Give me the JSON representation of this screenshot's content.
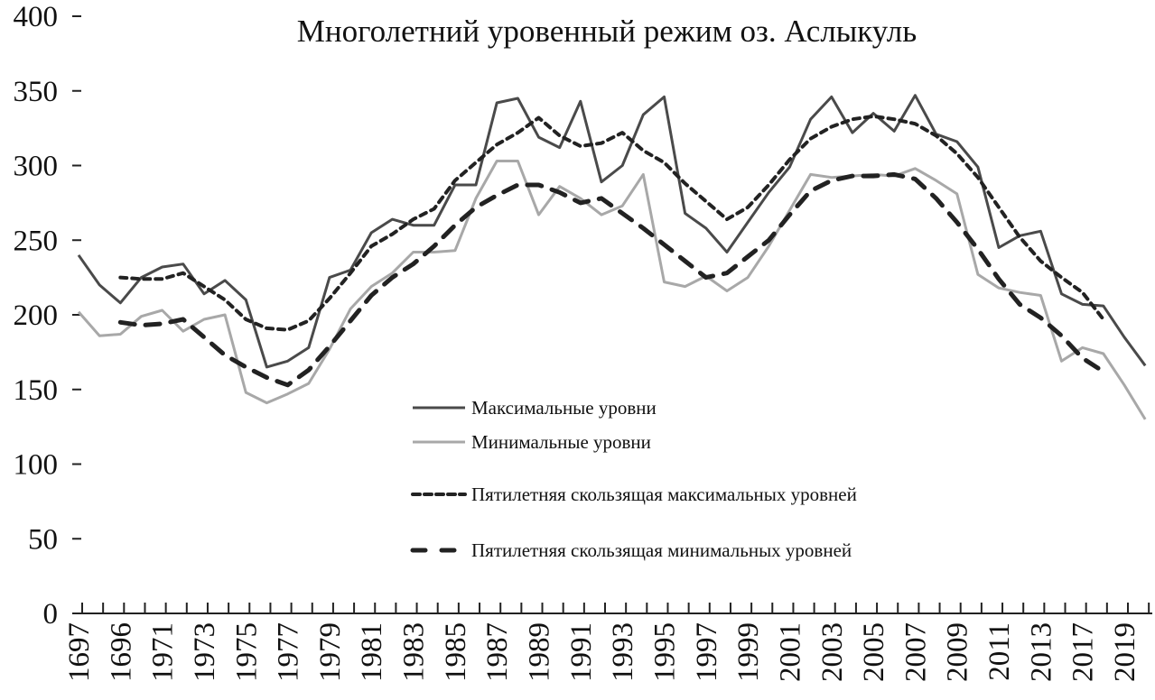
{
  "chart_data": {
    "type": "line",
    "title": "Многолетний уровенный режим оз. Аслыкуль",
    "xlabel": "",
    "ylabel": "",
    "ylim": [
      0,
      400
    ],
    "yticks": [
      "0",
      "50",
      "100",
      "150",
      "200",
      "250",
      "300",
      "350",
      "400"
    ],
    "xtick_labels": [
      "1697",
      "1696",
      "1971",
      "1973",
      "1975",
      "1977",
      "1979",
      "1981",
      "1983",
      "1985",
      "1987",
      "1989",
      "1991",
      "1993",
      "1995",
      "1997",
      "1999",
      "2001",
      "2003",
      "2005",
      "2007",
      "2009",
      "2011",
      "2013",
      "2017",
      "2019"
    ],
    "n_points": 52,
    "grid": false,
    "legend_placement": "center",
    "series": [
      {
        "name": "Максимальные уровни",
        "style": "solid",
        "color": "#4a4a4a",
        "values": [
          240,
          220,
          208,
          225,
          232,
          234,
          214,
          223,
          210,
          165,
          169,
          178,
          225,
          230,
          255,
          264,
          260,
          260,
          287,
          287,
          342,
          345,
          319,
          312,
          343,
          289,
          300,
          334,
          346,
          268,
          258,
          242,
          262,
          282,
          299,
          331,
          346,
          322,
          335,
          323,
          347,
          321,
          316,
          299,
          245,
          253,
          256,
          214,
          207,
          206,
          185,
          166
        ]
      },
      {
        "name": "Минимальные уровни",
        "style": "solid",
        "color": "#a8a8a8",
        "values": [
          202,
          186,
          187,
          199,
          203,
          189,
          197,
          200,
          148,
          141,
          147,
          154,
          177,
          204,
          219,
          228,
          242,
          242,
          243,
          278,
          303,
          303,
          267,
          286,
          278,
          267,
          273,
          294,
          222,
          219,
          226,
          216,
          225,
          246,
          270,
          294,
          292,
          293,
          294,
          293,
          298,
          290,
          281,
          227,
          218,
          215,
          213,
          169,
          178,
          174,
          153,
          130
        ]
      },
      {
        "name": "Пятилетняя скользящая максимальных уровней",
        "style": "short-dash",
        "color": "#222222",
        "values": [
          null,
          null,
          225,
          224,
          224,
          228,
          219,
          210,
          197,
          191,
          190,
          196,
          211,
          228,
          246,
          254,
          264,
          271,
          290,
          302,
          314,
          322,
          332,
          320,
          313,
          315,
          322,
          310,
          302,
          288,
          276,
          264,
          272,
          287,
          304,
          318,
          326,
          331,
          333,
          331,
          328,
          320,
          308,
          292,
          272,
          252,
          236,
          225,
          215,
          197,
          null,
          null
        ]
      },
      {
        "name": "Пятилетняя скользящая минимальных уровней",
        "style": "long-dash",
        "color": "#222222",
        "values": [
          null,
          null,
          195,
          193,
          194,
          197,
          185,
          173,
          165,
          158,
          153,
          163,
          179,
          196,
          213,
          225,
          234,
          246,
          260,
          272,
          280,
          287,
          287,
          282,
          275,
          278,
          268,
          258,
          247,
          236,
          225,
          228,
          239,
          250,
          267,
          283,
          290,
          293,
          293,
          294,
          291,
          278,
          262,
          244,
          224,
          207,
          198,
          186,
          171,
          162,
          null,
          null
        ]
      }
    ]
  }
}
